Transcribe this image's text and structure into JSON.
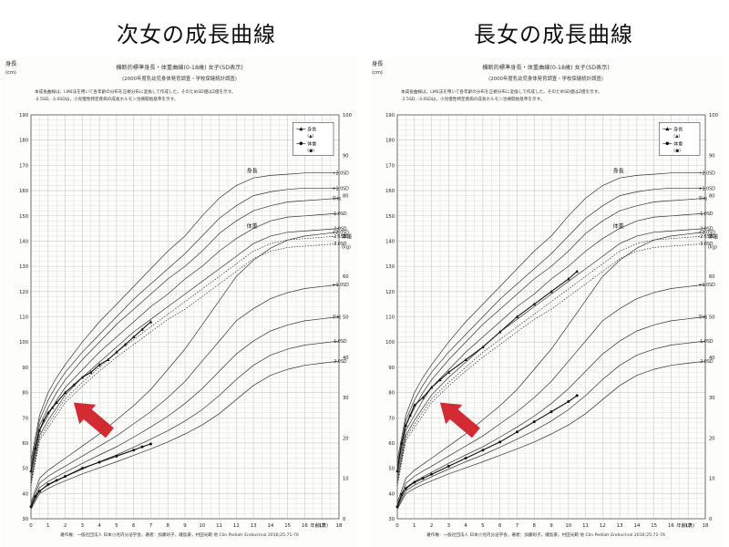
{
  "page": {
    "left_heading": "次女の成長曲線",
    "right_heading": "長女の成長曲線"
  },
  "sheet": {
    "title": "横断的標準身長・体重曲線(0-18歳) 女子(SD表示)",
    "subtitle": "(2000年度乳幼児身体発育調査・学校保健統計調査)",
    "note_line1": "本成長曲線は，LMS法を用いて各年齢の分布を正規分布に変換して作成した。そのためSD値はZ値を示す。",
    "note_line2": "-2.5SD, -3.0SDは，小児慢性特定疾病の成長ホルモン治療開始基準を示す。",
    "footer": "著作権：一般社団法人 日本小児内分泌学会，著者：加藤則子，磯島豪，村田光範 他 Clin Pediatr Endocrinol 2016;25:71-76",
    "height_axis_label": "身長",
    "height_unit": "(cm)",
    "weight_axis_label": "体重",
    "weight_unit": "(kg)",
    "age_label": "年齢(歳)",
    "height_curve_label": "身長",
    "weight_curve_label": "体重",
    "legend_height": "身長",
    "legend_height_symbol": "(▲)",
    "legend_weight": "体重",
    "legend_weight_symbol": "(●)"
  },
  "colors": {
    "grid": "#c9c9c9",
    "curve": "#333333",
    "marker": "#111111",
    "arrow": "#d42a32"
  },
  "chart_data": [
    {
      "type": "line",
      "panel": "left",
      "title": "次女の成長曲線",
      "x_label": "年齢(歳)",
      "xlim": [
        0,
        18
      ],
      "height_ylim": [
        30,
        190
      ],
      "weight_ylim": [
        0,
        100
      ],
      "height_y_ticks": [
        30,
        40,
        50,
        60,
        70,
        80,
        90,
        100,
        110,
        120,
        130,
        140,
        150,
        160,
        170,
        180,
        190
      ],
      "weight_y_ticks": [
        0,
        10,
        20,
        30,
        40,
        50,
        60,
        70,
        80,
        90,
        100
      ],
      "x_ticks": [
        0,
        1,
        2,
        3,
        4,
        5,
        6,
        7,
        8,
        9,
        10,
        11,
        12,
        13,
        14,
        15,
        16,
        17,
        18
      ],
      "height_sd_labels": [
        "+2.0SD",
        "+1.0SD",
        "平均",
        "-1.0SD",
        "-2.0SD",
        "-2.5SD",
        "-3.0SD"
      ],
      "weight_sd_labels": [
        "+2.0SD",
        "+1.0SD",
        "平均",
        "-1.0SD",
        "-2.0SD"
      ],
      "height_series": {
        "name": "身長",
        "x": [
          0,
          0.25,
          0.5,
          0.75,
          1,
          1.25,
          1.5,
          2,
          2.5,
          3,
          3.5,
          4,
          4.5,
          5,
          5.5,
          6,
          6.5,
          7
        ],
        "y": [
          49,
          58,
          65,
          69,
          72,
          74,
          76,
          80,
          83,
          86,
          88,
          91,
          93,
          96,
          99,
          102,
          105,
          108
        ]
      },
      "weight_series": {
        "name": "体重",
        "x": [
          0,
          0.25,
          0.5,
          1,
          1.5,
          2,
          3,
          4,
          5,
          6,
          6.5,
          7
        ],
        "y": [
          3.0,
          5.5,
          6.8,
          8.5,
          9.5,
          10.5,
          12.5,
          14.0,
          15.5,
          17.0,
          17.8,
          18.5
        ]
      }
    },
    {
      "type": "line",
      "panel": "right",
      "title": "長女の成長曲線",
      "x_label": "年齢(歳)",
      "xlim": [
        0,
        18
      ],
      "height_ylim": [
        30,
        190
      ],
      "weight_ylim": [
        0,
        100
      ],
      "height_y_ticks": [
        30,
        40,
        50,
        60,
        70,
        80,
        90,
        100,
        110,
        120,
        130,
        140,
        150,
        160,
        170,
        180,
        190
      ],
      "weight_y_ticks": [
        0,
        10,
        20,
        30,
        40,
        50,
        60,
        70,
        80,
        90,
        100
      ],
      "x_ticks": [
        0,
        1,
        2,
        3,
        4,
        5,
        6,
        7,
        8,
        9,
        10,
        11,
        12,
        13,
        14,
        15,
        16,
        17,
        18
      ],
      "height_sd_labels": [
        "+2.0SD",
        "+1.0SD",
        "平均",
        "-1.0SD",
        "-2.0SD",
        "-2.5SD",
        "-3.0SD"
      ],
      "weight_sd_labels": [
        "+2.0SD",
        "+1.0SD",
        "平均",
        "-1.0SD",
        "-2.0SD"
      ],
      "height_series": {
        "name": "身長",
        "x": [
          0,
          0.25,
          0.5,
          0.75,
          1,
          1.5,
          2,
          2.5,
          3,
          4,
          5,
          6,
          7,
          8,
          9,
          10,
          10.5
        ],
        "y": [
          49,
          60,
          67,
          71,
          75,
          78,
          82,
          85,
          88,
          93,
          98,
          104,
          110,
          115,
          120,
          125,
          128
        ]
      },
      "weight_series": {
        "name": "体重",
        "x": [
          0,
          0.25,
          0.5,
          1,
          1.5,
          2,
          3,
          4,
          5,
          6,
          7,
          8,
          9,
          10,
          10.5
        ],
        "y": [
          3.0,
          6.0,
          7.5,
          9.0,
          10.0,
          11.0,
          13.0,
          15.0,
          17.0,
          19.0,
          21.5,
          24.0,
          26.5,
          29.0,
          30.5
        ]
      }
    }
  ],
  "reference_curves": {
    "ages": [
      0,
      0.5,
      1,
      1.5,
      2,
      3,
      4,
      5,
      6,
      7,
      8,
      9,
      10,
      11,
      12,
      13,
      14,
      15,
      16,
      17,
      18
    ],
    "height": [
      {
        "label": "+2.0SD",
        "dashed": false,
        "values": [
          53,
          71,
          80,
          86,
          91,
          100,
          108,
          115,
          122,
          129,
          136,
          142,
          150,
          157,
          162,
          165,
          166,
          166.5,
          167,
          167,
          167
        ]
      },
      {
        "label": "+1.0SD",
        "dashed": false,
        "values": [
          51,
          69,
          77,
          83,
          88,
          96,
          103,
          110,
          117,
          123,
          129,
          135,
          142,
          149,
          154,
          158,
          159.5,
          160.5,
          161,
          161,
          161
        ]
      },
      {
        "label": "平均",
        "dashed": false,
        "values": [
          49,
          67,
          74,
          80,
          85,
          93,
          100,
          107,
          113,
          119,
          125,
          130,
          136,
          143,
          148,
          152,
          154,
          155.5,
          156,
          156.5,
          157
        ]
      },
      {
        "label": "-1.0SD",
        "dashed": false,
        "values": [
          47,
          65,
          71,
          77,
          82,
          89,
          96,
          102,
          108,
          114,
          119,
          125,
          130,
          136,
          141,
          145,
          148,
          149.5,
          150,
          150.5,
          151
        ]
      },
      {
        "label": "-2.0SD",
        "dashed": false,
        "values": [
          45,
          63,
          69,
          74,
          79,
          86,
          92,
          98,
          104,
          109,
          114,
          119,
          124,
          129,
          134,
          139,
          142,
          143.5,
          144,
          144.5,
          145
        ]
      },
      {
        "label": "-2.5SD",
        "dashed": true,
        "values": [
          44,
          62,
          67.5,
          72.5,
          77.5,
          84,
          90,
          96,
          101,
          106,
          111,
          116,
          121,
          126,
          131,
          136,
          139,
          140.5,
          141,
          141.5,
          142
        ]
      },
      {
        "label": "-3.0SD",
        "dashed": true,
        "values": [
          43,
          61,
          66,
          71,
          76,
          82.5,
          88.5,
          94,
          99,
          104,
          109,
          113,
          118,
          123,
          128,
          133,
          136,
          137.5,
          138,
          138.5,
          139
        ]
      }
    ],
    "weight": [
      {
        "label": "+2.0SD",
        "values": [
          4.0,
          10.0,
          12.0,
          13.5,
          15.0,
          18.0,
          21.0,
          24.5,
          28.0,
          32.0,
          37.0,
          42.0,
          48.0,
          54.0,
          60.0,
          64.0,
          67.0,
          69.0,
          70.0,
          70.5,
          71.0
        ]
      },
      {
        "label": "+1.0SD",
        "values": [
          3.4,
          8.8,
          10.5,
          11.8,
          13.0,
          15.5,
          18.0,
          20.5,
          23.5,
          26.5,
          30.0,
          34.0,
          39.0,
          44.0,
          49.0,
          52.0,
          54.5,
          56.0,
          57.0,
          57.5,
          58.0
        ]
      },
      {
        "label": "平均",
        "values": [
          3.0,
          7.7,
          9.2,
          10.4,
          11.5,
          13.7,
          15.8,
          17.8,
          20.2,
          22.7,
          25.4,
          28.5,
          32.2,
          36.5,
          40.8,
          44.0,
          46.5,
          48.0,
          49.0,
          49.5,
          50.0
        ]
      },
      {
        "label": "-1.0SD",
        "values": [
          2.7,
          6.9,
          8.3,
          9.4,
          10.4,
          12.3,
          14.1,
          15.8,
          17.7,
          19.7,
          21.8,
          24.2,
          27.0,
          30.5,
          34.5,
          38.0,
          40.5,
          42.0,
          43.0,
          43.5,
          44.0
        ]
      },
      {
        "label": "-2.0SD",
        "values": [
          2.4,
          6.2,
          7.5,
          8.5,
          9.4,
          11.1,
          12.6,
          14.1,
          15.7,
          17.3,
          19.0,
          21.0,
          23.2,
          26.0,
          29.5,
          33.0,
          35.5,
          37.0,
          38.0,
          38.5,
          39.0
        ]
      }
    ]
  }
}
